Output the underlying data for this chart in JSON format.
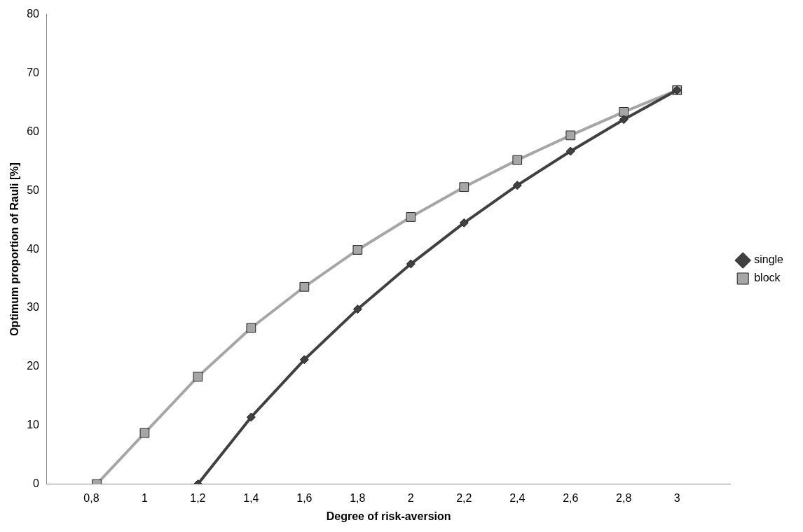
{
  "chart_data": {
    "type": "line",
    "xlabel": "Degree of risk-aversion",
    "ylabel": "Optimum proportion of Rauli [%]",
    "xlim": [
      0.633,
      3.2
    ],
    "xticks": [
      {
        "value": 0.8,
        "label": "0,8"
      },
      1,
      {
        "value": 1.2,
        "label": "1,2"
      },
      {
        "value": 1.4,
        "label": "1,4"
      },
      {
        "value": 1.6,
        "label": "1,6"
      },
      {
        "value": 1.8,
        "label": "1,8"
      },
      2,
      {
        "value": 2.2,
        "label": "2,2"
      },
      {
        "value": 2.4,
        "label": "2,4"
      },
      {
        "value": 2.6,
        "label": "2,6"
      },
      {
        "value": 2.8,
        "label": "2,8"
      },
      3
    ],
    "ylim": [
      0,
      80
    ],
    "yticks": [
      0,
      10,
      20,
      30,
      40,
      50,
      60,
      70,
      80
    ],
    "grid": false,
    "legend": "right",
    "series": [
      {
        "name": "single",
        "color": "#404040",
        "marker": "diamond",
        "x": [
          1.2,
          1.4,
          1.6,
          1.8,
          2,
          2.2,
          2.4,
          2.6,
          2.8,
          3
        ],
        "values": [
          0,
          11.4,
          21.2,
          29.8,
          37.5,
          44.5,
          50.9,
          56.7,
          62.1,
          67.1
        ]
      },
      {
        "name": "block",
        "color": "#a6a6a6",
        "marker": "square",
        "x": [
          0.82,
          1,
          1.2,
          1.4,
          1.6,
          1.8,
          2,
          2.2,
          2.4,
          2.6,
          2.8,
          3
        ],
        "values": [
          0,
          8.7,
          18.3,
          26.6,
          33.6,
          39.9,
          45.5,
          50.6,
          55.2,
          59.4,
          63.4,
          67.1
        ]
      }
    ]
  }
}
